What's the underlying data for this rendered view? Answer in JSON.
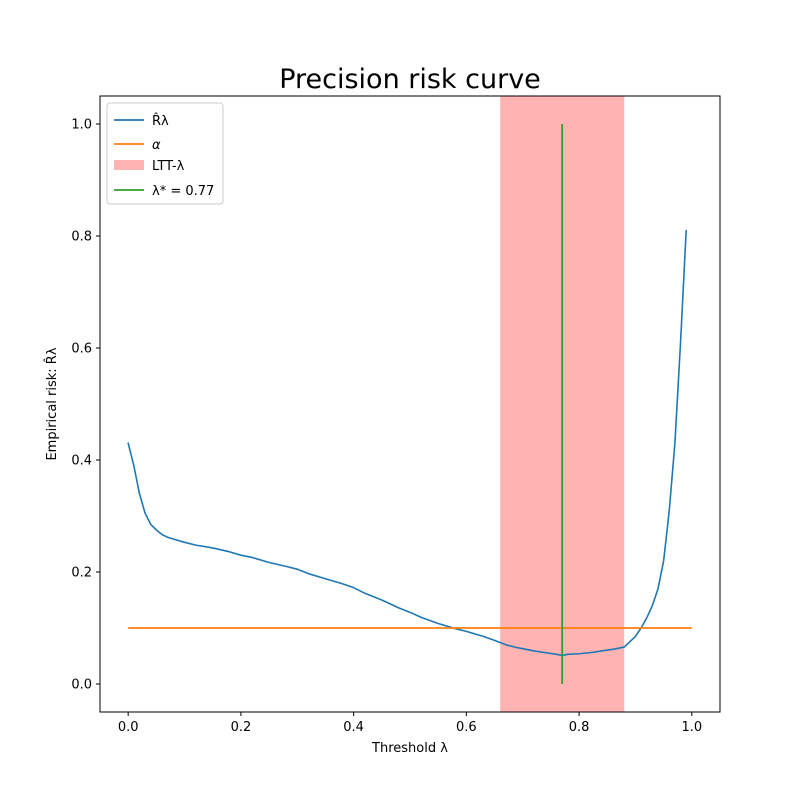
{
  "chart_data": {
    "type": "line",
    "title": "Precision risk curve",
    "xlabel": "Threshold λ",
    "ylabel": "Empirical risk: R̂λ",
    "xlim": [
      -0.05,
      1.05
    ],
    "ylim": [
      -0.05,
      1.05
    ],
    "xticks": [
      0.0,
      0.2,
      0.4,
      0.6,
      0.8,
      1.0
    ],
    "xtick_labels": [
      "0.0",
      "0.2",
      "0.4",
      "0.6",
      "0.8",
      "1.0"
    ],
    "yticks": [
      0.0,
      0.2,
      0.4,
      0.6,
      0.8,
      1.0
    ],
    "ytick_labels": [
      "0.0",
      "0.2",
      "0.4",
      "0.6",
      "0.8",
      "1.0"
    ],
    "grid": false,
    "legend_position": "top-left",
    "series": [
      {
        "name": "R̂λ",
        "kind": "line",
        "color": "#1f77b4",
        "x": [
          0.0,
          0.01,
          0.02,
          0.03,
          0.04,
          0.05,
          0.06,
          0.07,
          0.08,
          0.1,
          0.12,
          0.15,
          0.18,
          0.2,
          0.22,
          0.25,
          0.28,
          0.3,
          0.32,
          0.35,
          0.38,
          0.4,
          0.42,
          0.45,
          0.48,
          0.5,
          0.52,
          0.55,
          0.58,
          0.6,
          0.63,
          0.65,
          0.67,
          0.69,
          0.7,
          0.72,
          0.74,
          0.76,
          0.77,
          0.78,
          0.8,
          0.82,
          0.84,
          0.86,
          0.88,
          0.9,
          0.91,
          0.92,
          0.93,
          0.94,
          0.95,
          0.96,
          0.97,
          0.98,
          0.99
        ],
        "y": [
          0.43,
          0.39,
          0.34,
          0.305,
          0.285,
          0.275,
          0.267,
          0.262,
          0.259,
          0.253,
          0.248,
          0.243,
          0.236,
          0.23,
          0.226,
          0.217,
          0.21,
          0.205,
          0.197,
          0.188,
          0.179,
          0.172,
          0.162,
          0.15,
          0.136,
          0.128,
          0.119,
          0.108,
          0.099,
          0.094,
          0.085,
          0.078,
          0.07,
          0.065,
          0.063,
          0.059,
          0.056,
          0.053,
          0.051,
          0.053,
          0.054,
          0.056,
          0.059,
          0.062,
          0.066,
          0.085,
          0.1,
          0.118,
          0.14,
          0.17,
          0.22,
          0.31,
          0.43,
          0.61,
          0.81
        ]
      },
      {
        "name": "α",
        "kind": "hline",
        "color": "#ff7f0e",
        "y": 0.1,
        "x": [
          0.0,
          1.0
        ]
      },
      {
        "name": "LTT-λ",
        "kind": "span",
        "color": "#ffb3b3",
        "x": [
          0.66,
          0.88
        ]
      },
      {
        "name": "λ* = 0.77",
        "kind": "vline",
        "color": "#2ca02c",
        "x": 0.77,
        "y": [
          0.0,
          1.0
        ]
      }
    ]
  }
}
